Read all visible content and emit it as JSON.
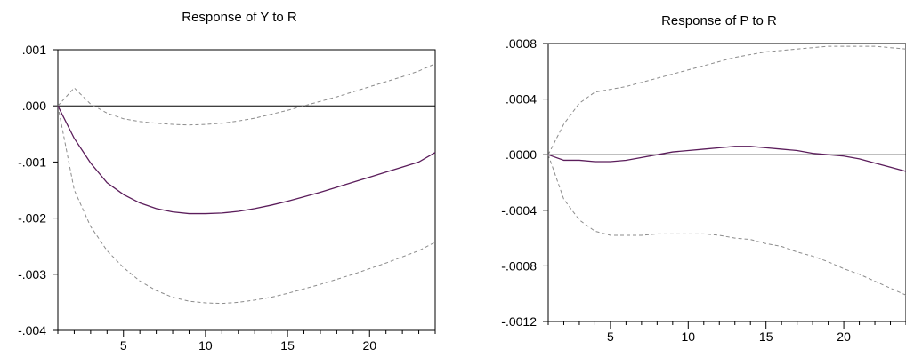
{
  "chart_data": [
    {
      "type": "line",
      "title": "Response of Y to R",
      "xlabel": "",
      "ylabel": "",
      "xlim": [
        1,
        24
      ],
      "ylim": [
        -0.004,
        0.001
      ],
      "x_ticks": [
        5,
        10,
        15,
        20
      ],
      "y_ticks": [
        {
          "value": 0.001,
          "label": ".001"
        },
        {
          "value": 0.0,
          "label": ".000"
        },
        {
          "value": -0.001,
          "label": "-.001"
        },
        {
          "value": -0.002,
          "label": "-.002"
        },
        {
          "value": -0.003,
          "label": "-.003"
        },
        {
          "value": -0.004,
          "label": "-.004"
        }
      ],
      "zero_line": true,
      "grid": false,
      "x": [
        1,
        2,
        3,
        4,
        5,
        6,
        7,
        8,
        9,
        10,
        11,
        12,
        13,
        14,
        15,
        16,
        17,
        18,
        19,
        20,
        21,
        22,
        23,
        24
      ],
      "series": [
        {
          "role": "response",
          "style": "solid",
          "color": "#5b1d5b",
          "values": [
            0.0,
            -0.00058,
            -0.00102,
            -0.00137,
            -0.00158,
            -0.00173,
            -0.00183,
            -0.00189,
            -0.00192,
            -0.00192,
            -0.00191,
            -0.00188,
            -0.00183,
            -0.00177,
            -0.0017,
            -0.00162,
            -0.00154,
            -0.00145,
            -0.00136,
            -0.00127,
            -0.00118,
            -0.00109,
            -0.001,
            -0.00083
          ]
        },
        {
          "role": "upper",
          "style": "dashed",
          "color": "#8c8c8c",
          "values": [
            0.0,
            0.00032,
            3e-05,
            -0.00013,
            -0.00023,
            -0.00028,
            -0.00031,
            -0.00033,
            -0.00034,
            -0.00033,
            -0.00031,
            -0.00027,
            -0.00022,
            -0.00015,
            -8e-05,
            0.0,
            8e-05,
            0.00016,
            0.00025,
            0.00034,
            0.00043,
            0.00052,
            0.00062,
            0.00075
          ]
        },
        {
          "role": "lower",
          "style": "dashed",
          "color": "#8c8c8c",
          "values": [
            0.0,
            -0.0015,
            -0.00215,
            -0.00258,
            -0.00288,
            -0.00312,
            -0.00329,
            -0.00341,
            -0.00348,
            -0.00351,
            -0.00352,
            -0.0035,
            -0.00346,
            -0.00341,
            -0.00334,
            -0.00326,
            -0.00318,
            -0.00309,
            -0.003,
            -0.0029,
            -0.0028,
            -0.00269,
            -0.00258,
            -0.00243
          ]
        }
      ]
    },
    {
      "type": "line",
      "title": "Response of P to R",
      "xlabel": "",
      "ylabel": "",
      "xlim": [
        1,
        24
      ],
      "ylim": [
        -0.0012,
        0.0008
      ],
      "x_ticks": [
        5,
        10,
        15,
        20
      ],
      "y_ticks": [
        {
          "value": 0.0008,
          "label": ".0008"
        },
        {
          "value": 0.0004,
          "label": ".0004"
        },
        {
          "value": 0.0,
          "label": ".0000"
        },
        {
          "value": -0.0004,
          "label": "-.0004"
        },
        {
          "value": -0.0008,
          "label": "-.0008"
        },
        {
          "value": -0.0012,
          "label": "-.0012"
        }
      ],
      "zero_line": true,
      "grid": false,
      "x": [
        1,
        2,
        3,
        4,
        5,
        6,
        7,
        8,
        9,
        10,
        11,
        12,
        13,
        14,
        15,
        16,
        17,
        18,
        19,
        20,
        21,
        22,
        23,
        24
      ],
      "series": [
        {
          "role": "response",
          "style": "solid",
          "color": "#5b1d5b",
          "values": [
            0.0,
            -4e-05,
            -4e-05,
            -5e-05,
            -5e-05,
            -4e-05,
            -2e-05,
            0.0,
            2e-05,
            3e-05,
            4e-05,
            5e-05,
            6e-05,
            6e-05,
            5e-05,
            4e-05,
            3e-05,
            1e-05,
            0.0,
            -1e-05,
            -3e-05,
            -6e-05,
            -9e-05,
            -0.00012
          ]
        },
        {
          "role": "upper",
          "style": "dashed",
          "color": "#8c8c8c",
          "values": [
            0.0,
            0.00022,
            0.00037,
            0.00045,
            0.00047,
            0.00049,
            0.00052,
            0.00055,
            0.00058,
            0.00061,
            0.00064,
            0.00067,
            0.0007,
            0.00072,
            0.00074,
            0.00075,
            0.00076,
            0.00077,
            0.00078,
            0.00078,
            0.00078,
            0.00078,
            0.00077,
            0.00076
          ]
        },
        {
          "role": "lower",
          "style": "dashed",
          "color": "#8c8c8c",
          "values": [
            0.0,
            -0.00032,
            -0.00047,
            -0.00055,
            -0.00058,
            -0.00058,
            -0.00058,
            -0.00057,
            -0.00057,
            -0.00057,
            -0.00057,
            -0.00058,
            -0.0006,
            -0.00061,
            -0.00064,
            -0.00066,
            -0.0007,
            -0.00073,
            -0.00077,
            -0.00082,
            -0.00086,
            -0.00091,
            -0.00096,
            -0.00101
          ]
        }
      ]
    }
  ]
}
